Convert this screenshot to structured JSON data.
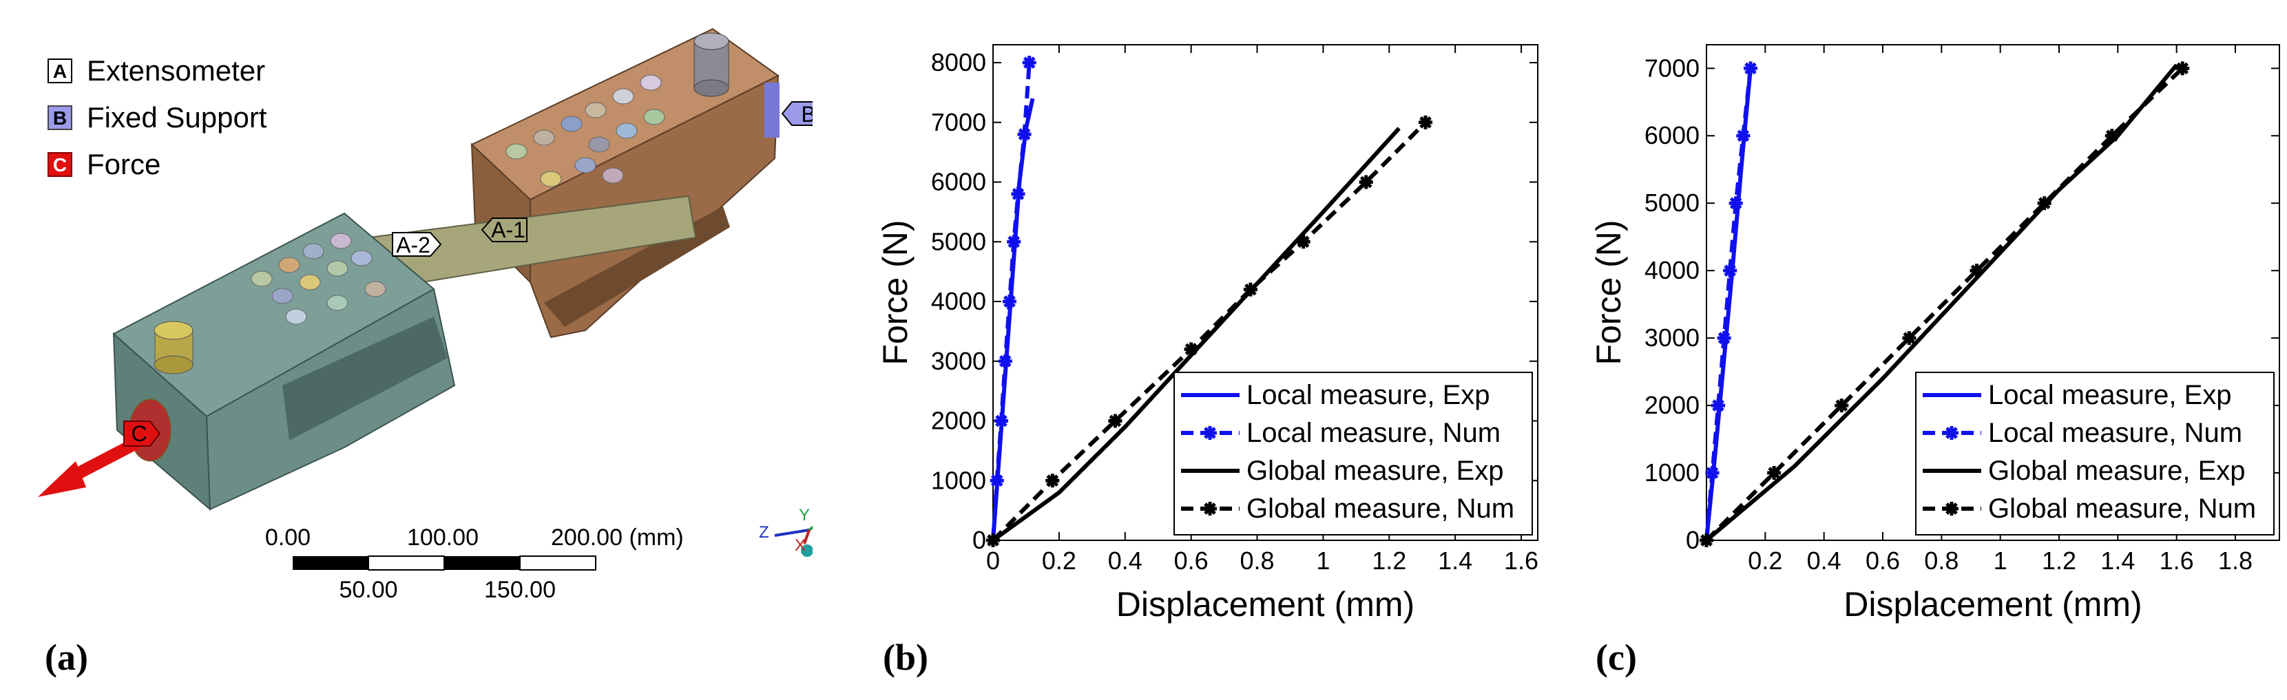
{
  "panel_a": {
    "label": "(a)",
    "legend": [
      {
        "letter": "A",
        "text": "Extensometer",
        "color": "#ffffff"
      },
      {
        "letter": "B",
        "text": "Fixed Support",
        "color": "#9b9bea"
      },
      {
        "letter": "C",
        "text": "Force",
        "color": "#e01010"
      }
    ],
    "tags": {
      "a1": "A-1",
      "a2": "A-2",
      "b": "B",
      "c": "C"
    },
    "scale_bar": {
      "top_labels": [
        "0.00",
        "100.00",
        "200.00 (mm)"
      ],
      "bottom_labels": [
        "50.00",
        "150.00"
      ]
    },
    "triad": {
      "x": "X",
      "y": "Y",
      "z": "Z"
    }
  },
  "chart_data": [
    {
      "panel_label": "(b)",
      "type": "line",
      "xlabel": "Displacement (mm)",
      "ylabel": "Force (N)",
      "xlim": [
        0,
        1.65
      ],
      "ylim": [
        0,
        8300
      ],
      "xticks": [
        0,
        0.2,
        0.4,
        0.6,
        0.8,
        1,
        1.2,
        1.4,
        1.6
      ],
      "xtick_labels": [
        "0",
        "0.2",
        "0.4",
        "0.6",
        "0.8",
        "1",
        "1.2",
        "1.4",
        "1.6"
      ],
      "yticks": [
        0,
        1000,
        2000,
        3000,
        4000,
        5000,
        6000,
        7000,
        8000
      ],
      "ytick_labels": [
        "0",
        "1000",
        "2000",
        "3000",
        "4000",
        "5000",
        "6000",
        "7000",
        "8000"
      ],
      "legend_position": "bottom-right",
      "series": [
        {
          "name": "Local measure, Exp",
          "color": "#1010ee",
          "style": "solid",
          "marker": "none",
          "x": [
            0,
            0.02,
            0.04,
            0.06,
            0.08,
            0.1,
            0.12
          ],
          "y": [
            0,
            1500,
            3000,
            4500,
            6000,
            6900,
            7400
          ]
        },
        {
          "name": "Local measure, Num",
          "color": "#1010ee",
          "style": "dashed",
          "marker": "asterisk",
          "x": [
            0,
            0.012,
            0.025,
            0.037,
            0.05,
            0.063,
            0.076,
            0.095,
            0.11
          ],
          "y": [
            0,
            1000,
            2000,
            3000,
            4000,
            5000,
            5800,
            6800,
            8000
          ]
        },
        {
          "name": "Global measure, Exp",
          "color": "#000000",
          "style": "solid",
          "marker": "none",
          "x": [
            0,
            0.2,
            0.4,
            0.6,
            0.8,
            1.0,
            1.23
          ],
          "y": [
            0,
            800,
            1900,
            3100,
            4300,
            5500,
            6900
          ]
        },
        {
          "name": "Global measure, Num",
          "color": "#000000",
          "style": "dashed",
          "marker": "asterisk",
          "x": [
            0,
            0.18,
            0.37,
            0.6,
            0.78,
            0.94,
            1.13,
            1.31
          ],
          "y": [
            0,
            1000,
            2000,
            3200,
            4200,
            5000,
            6000,
            7000
          ]
        }
      ]
    },
    {
      "panel_label": "(c)",
      "type": "line",
      "xlabel": "Displacement (mm)",
      "ylabel": "Force (N)",
      "xlim": [
        0,
        1.95
      ],
      "ylim": [
        0,
        7350
      ],
      "xticks": [
        0.2,
        0.4,
        0.6,
        0.8,
        1,
        1.2,
        1.4,
        1.6,
        1.8
      ],
      "xtick_labels": [
        "0.2",
        "0.4",
        "0.6",
        "0.8",
        "1",
        "1.2",
        "1.4",
        "1.6",
        "1.8"
      ],
      "yticks": [
        0,
        1000,
        2000,
        3000,
        4000,
        5000,
        6000,
        7000
      ],
      "ytick_labels": [
        "0",
        "1000",
        "2000",
        "3000",
        "4000",
        "5000",
        "6000",
        "7000"
      ],
      "legend_position": "bottom-right",
      "series": [
        {
          "name": "Local measure, Exp",
          "color": "#1010ee",
          "style": "solid",
          "marker": "none",
          "x": [
            0,
            0.03,
            0.06,
            0.09,
            0.12,
            0.15
          ],
          "y": [
            0,
            1300,
            2700,
            4100,
            5600,
            7000
          ]
        },
        {
          "name": "Local measure, Num",
          "color": "#1010ee",
          "style": "dashed",
          "marker": "asterisk",
          "x": [
            0,
            0.02,
            0.04,
            0.06,
            0.08,
            0.1,
            0.125,
            0.15
          ],
          "y": [
            0,
            1000,
            2000,
            3000,
            4000,
            5000,
            6000,
            7000
          ]
        },
        {
          "name": "Global measure, Exp",
          "color": "#000000",
          "style": "solid",
          "marker": "none",
          "x": [
            0,
            0.3,
            0.6,
            0.9,
            1.2,
            1.4,
            1.6
          ],
          "y": [
            0,
            1100,
            2400,
            3800,
            5200,
            6000,
            7050
          ]
        },
        {
          "name": "Global measure, Num",
          "color": "#000000",
          "style": "dashed",
          "marker": "asterisk",
          "x": [
            0,
            0.23,
            0.46,
            0.69,
            0.92,
            1.15,
            1.38,
            1.62
          ],
          "y": [
            0,
            1000,
            2000,
            3000,
            4000,
            5000,
            6000,
            7000
          ]
        }
      ]
    }
  ]
}
